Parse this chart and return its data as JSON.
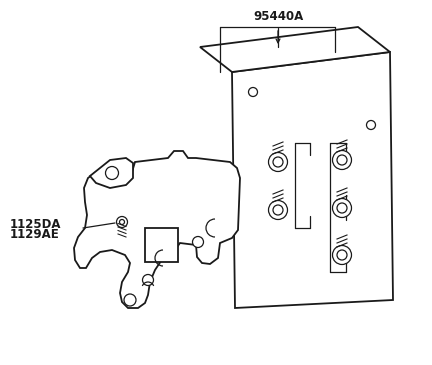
{
  "bg_color": "#ffffff",
  "line_color": "#1a1a1a",
  "label_95440A": "95440A",
  "label_1125DA": "1125DA",
  "label_1129AE": "1129AE",
  "label_fontsize": 8.5,
  "fig_width": 4.32,
  "fig_height": 3.65,
  "dpi": 100
}
